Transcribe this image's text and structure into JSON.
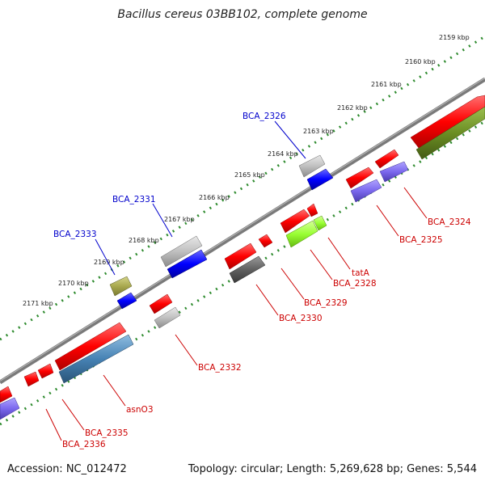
{
  "header": {
    "title": "Bacillus cereus 03BB102, complete genome"
  },
  "footer": {
    "accession": "Accession: NC_012472",
    "summary": "Topology: circular; Length: 5,269,628 bp; Genes: 5,544"
  },
  "colors": {
    "backbone": "#7a7a7a",
    "tick_dots": "#2e8b2e",
    "gene_red": "#ff0000",
    "gene_blue": "#0000ff",
    "gene_grey": "#c0c0c0",
    "gene_darkgrey": "#606060",
    "gene_olive": "#a9a94f",
    "gene_darkolive": "#6b8e23",
    "gene_slate": "#7b68ee",
    "gene_steel": "#4682b4",
    "gene_lime": "#99ff33",
    "label_blue": "#0000cc",
    "label_red": "#cc0000"
  },
  "kbp_ticks": [
    "2159 kbp",
    "2160 kbp",
    "2161 kbp",
    "2162 kbp",
    "2163 kbp",
    "2164 kbp",
    "2165 kbp",
    "2166 kbp",
    "2167 kbp",
    "2168 kbp",
    "2169 kbp",
    "2170 kbp",
    "2171 kbp"
  ],
  "gene_labels": [
    {
      "text": "BCA_2326",
      "color": "blue"
    },
    {
      "text": "BCA_2331",
      "color": "blue"
    },
    {
      "text": "BCA_2333",
      "color": "blue"
    },
    {
      "text": "BCA_2324",
      "color": "red"
    },
    {
      "text": "BCA_2325",
      "color": "red"
    },
    {
      "text": "tatA",
      "color": "red"
    },
    {
      "text": "BCA_2328",
      "color": "red"
    },
    {
      "text": "BCA_2329",
      "color": "red"
    },
    {
      "text": "BCA_2330",
      "color": "red"
    },
    {
      "text": "BCA_2332",
      "color": "red"
    },
    {
      "text": "asnO3",
      "color": "red"
    },
    {
      "text": "BCA_2335",
      "color": "red"
    },
    {
      "text": "BCA_2336",
      "color": "red"
    }
  ]
}
